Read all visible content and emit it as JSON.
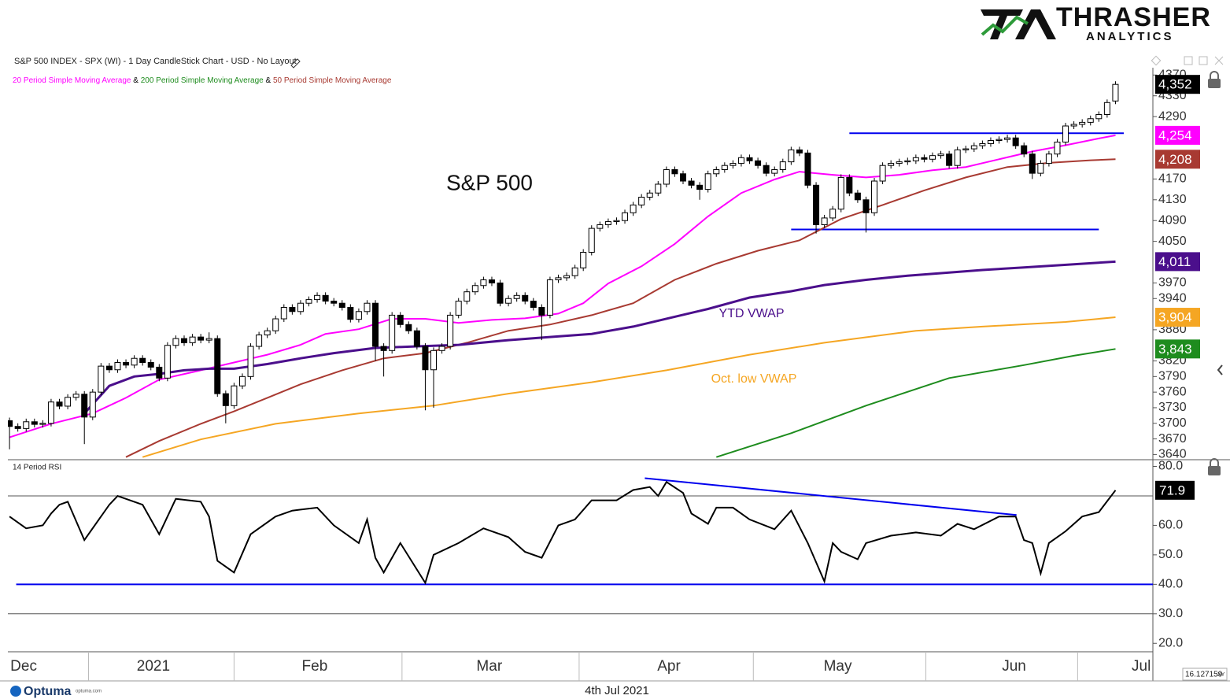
{
  "chart_data": [
    {
      "type": "candlestick",
      "title": "S&P 500 INDEX - SPX (WI) - 1 Day CandleStick Chart - USD - No Layout",
      "annotation": "S&P 500",
      "legend_separator": "&",
      "open": [
        3705,
        3694,
        3690,
        3703,
        3698,
        3700,
        3741,
        3733,
        3750,
        3756,
        3712,
        3760,
        3810,
        3803,
        3817,
        3812,
        3825,
        3817,
        3808,
        3787,
        3850,
        3863,
        3855,
        3866,
        3860,
        3863,
        3757,
        3734,
        3772,
        3790,
        3848,
        3870,
        3878,
        3901,
        3923,
        3915,
        3931,
        3938,
        3946,
        3935,
        3931,
        3923,
        3900,
        3915,
        3931,
        3848,
        3840,
        3908,
        3890,
        3878,
        3848,
        3803,
        3840,
        3848,
        3908,
        3935,
        3953,
        3965,
        3976,
        3970,
        3931,
        3940,
        3946,
        3935,
        3923,
        3908,
        3976,
        3980,
        3984,
        3999,
        4029,
        4075,
        4082,
        4088,
        4090,
        4105,
        4120,
        4135,
        4143,
        4160,
        4188,
        4180,
        4166,
        4158,
        4150,
        4180,
        4188,
        4196,
        4200,
        4211,
        4205,
        4196,
        4181,
        4188,
        4203,
        4226,
        4220,
        4158,
        4082,
        4095,
        4112,
        4173,
        4143,
        4130,
        4105,
        4166,
        4196,
        4200,
        4203,
        4205,
        4211,
        4208,
        4215,
        4218,
        4196,
        4226,
        4228,
        4234,
        4238,
        4244,
        4246,
        4249,
        4234,
        4218,
        4181,
        4200,
        4218,
        4241,
        4272,
        4275,
        4279,
        4286,
        4294,
        4320
      ],
      "high": [
        3711,
        3700,
        3709,
        3709,
        3706,
        3747,
        3747,
        3756,
        3762,
        3762,
        3766,
        3816,
        3816,
        3823,
        3823,
        3831,
        3831,
        3823,
        3814,
        3856,
        3869,
        3869,
        3872,
        3872,
        3875,
        3869,
        3763,
        3778,
        3796,
        3854,
        3876,
        3884,
        3907,
        3929,
        3929,
        3937,
        3944,
        3952,
        3952,
        3941,
        3937,
        3929,
        3921,
        3937,
        3937,
        3854,
        3914,
        3914,
        3896,
        3884,
        3854,
        3846,
        3854,
        3914,
        3941,
        3959,
        3971,
        3982,
        3982,
        3976,
        3946,
        3952,
        3952,
        3941,
        3929,
        3982,
        3986,
        3990,
        4005,
        4035,
        4081,
        4088,
        4094,
        4096,
        4111,
        4126,
        4141,
        4149,
        4166,
        4194,
        4194,
        4186,
        4172,
        4164,
        4186,
        4194,
        4202,
        4206,
        4217,
        4217,
        4211,
        4202,
        4194,
        4209,
        4232,
        4232,
        4226,
        4164,
        4101,
        4118,
        4179,
        4179,
        4149,
        4136,
        4172,
        4202,
        4206,
        4209,
        4211,
        4217,
        4217,
        4221,
        4224,
        4224,
        4232,
        4234,
        4240,
        4244,
        4250,
        4252,
        4255,
        4255,
        4240,
        4224,
        4206,
        4224,
        4247,
        4278,
        4281,
        4285,
        4292,
        4300,
        4323,
        4358
      ],
      "low": [
        3650,
        3684,
        3684,
        3692,
        3692,
        3694,
        3727,
        3727,
        3744,
        3660,
        3706,
        3754,
        3797,
        3797,
        3806,
        3806,
        3811,
        3802,
        3781,
        3781,
        3844,
        3849,
        3849,
        3854,
        3854,
        3751,
        3700,
        3728,
        3766,
        3784,
        3842,
        3864,
        3872,
        3895,
        3909,
        3909,
        3925,
        3932,
        3929,
        3925,
        3917,
        3894,
        3894,
        3909,
        3820,
        3790,
        3834,
        3884,
        3872,
        3842,
        3725,
        3730,
        3834,
        3842,
        3902,
        3929,
        3947,
        3959,
        3964,
        3925,
        3925,
        3934,
        3929,
        3917,
        3860,
        3902,
        3970,
        3974,
        3978,
        3993,
        4023,
        4069,
        4076,
        4082,
        4084,
        4099,
        4114,
        4129,
        4137,
        4154,
        4174,
        4160,
        4152,
        4130,
        4144,
        4174,
        4182,
        4190,
        4194,
        4199,
        4190,
        4175,
        4175,
        4182,
        4197,
        4214,
        4152,
        4065,
        4076,
        4089,
        4106,
        4137,
        4124,
        4067,
        4099,
        4160,
        4190,
        4194,
        4197,
        4199,
        4202,
        4202,
        4209,
        4190,
        4190,
        4220,
        4222,
        4228,
        4232,
        4238,
        4240,
        4228,
        4212,
        4170,
        4175,
        4194,
        4212,
        4235,
        4266,
        4269,
        4273,
        4280,
        4288,
        4314
      ],
      "close": [
        3694,
        3690,
        3703,
        3698,
        3700,
        3741,
        3733,
        3750,
        3756,
        3712,
        3760,
        3810,
        3803,
        3817,
        3812,
        3825,
        3817,
        3808,
        3787,
        3850,
        3863,
        3855,
        3866,
        3860,
        3863,
        3757,
        3734,
        3772,
        3790,
        3848,
        3870,
        3878,
        3901,
        3923,
        3915,
        3931,
        3938,
        3946,
        3935,
        3931,
        3923,
        3900,
        3915,
        3931,
        3848,
        3840,
        3908,
        3890,
        3878,
        3848,
        3803,
        3840,
        3848,
        3908,
        3935,
        3953,
        3965,
        3976,
        3970,
        3931,
        3940,
        3946,
        3935,
        3923,
        3908,
        3976,
        3980,
        3984,
        3999,
        4029,
        4075,
        4082,
        4088,
        4090,
        4105,
        4120,
        4135,
        4143,
        4160,
        4188,
        4180,
        4166,
        4158,
        4150,
        4180,
        4188,
        4196,
        4200,
        4211,
        4205,
        4196,
        4181,
        4188,
        4203,
        4226,
        4220,
        4158,
        4082,
        4095,
        4112,
        4173,
        4143,
        4130,
        4105,
        4166,
        4196,
        4200,
        4203,
        4205,
        4211,
        4208,
        4215,
        4218,
        4196,
        4226,
        4228,
        4234,
        4238,
        4244,
        4246,
        4249,
        4234,
        4218,
        4181,
        4200,
        4218,
        4241,
        4272,
        4275,
        4279,
        4286,
        4294,
        4317,
        4352
      ],
      "series": [
        {
          "name": "20 Period Simple Moving Average",
          "color": "#ff00ff",
          "legend": true,
          "x": [
            0,
            5,
            10,
            14,
            18,
            23,
            27,
            31,
            35,
            38,
            42,
            46,
            50,
            54,
            58,
            62,
            66,
            69,
            72,
            76,
            80,
            84,
            88,
            92,
            95,
            99,
            103,
            107,
            111,
            115,
            119,
            123,
            127,
            131,
            133
          ],
          "values": [
            3673,
            3699,
            3719,
            3749,
            3784,
            3802,
            3817,
            3832,
            3851,
            3872,
            3881,
            3901,
            3901,
            3893,
            3899,
            3902,
            3911,
            3931,
            3969,
            4002,
            4045,
            4098,
            4143,
            4169,
            4184,
            4178,
            4173,
            4178,
            4187,
            4193,
            4208,
            4223,
            4235,
            4248,
            4254
          ]
        },
        {
          "name": "200 Period Simple Moving Average",
          "color": "#1e8c1e",
          "legend": true,
          "x": [
            85,
            94,
            103,
            113,
            122,
            128,
            133
          ],
          "values": [
            3635,
            3681,
            3734,
            3787,
            3812,
            3830,
            3843
          ]
        },
        {
          "name": "50 Period Simple Moving Average",
          "color": "#a83a32",
          "legend": true,
          "x": [
            14,
            18,
            23,
            27,
            31,
            35,
            40,
            45,
            50,
            55,
            60,
            65,
            70,
            75,
            80,
            85,
            90,
            95,
            100,
            105,
            110,
            115,
            120,
            125,
            130,
            133
          ],
          "values": [
            3635,
            3666,
            3699,
            3723,
            3749,
            3775,
            3802,
            3825,
            3835,
            3855,
            3878,
            3890,
            3908,
            3931,
            3976,
            4007,
            4032,
            4052,
            4093,
            4120,
            4148,
            4173,
            4193,
            4201,
            4206,
            4208
          ]
        },
        {
          "name": "YTD VWAP",
          "color": "#4b0f8c",
          "x": [
            9,
            12,
            15,
            18,
            21,
            24,
            27,
            31,
            35,
            39,
            44,
            49,
            54,
            60,
            65,
            70,
            75,
            80,
            84,
            89,
            94,
            98,
            103,
            108,
            113,
            117,
            122,
            128,
            133
          ],
          "values": [
            3719,
            3772,
            3790,
            3795,
            3802,
            3805,
            3805,
            3814,
            3825,
            3835,
            3845,
            3848,
            3851,
            3860,
            3866,
            3872,
            3886,
            3905,
            3920,
            3942,
            3954,
            3966,
            3976,
            3984,
            3990,
            3995,
            4000,
            4006,
            4011
          ]
        },
        {
          "name": "Oct. low VWAP",
          "color": "#f5a623",
          "x": [
            16,
            23,
            32,
            42,
            51,
            60,
            70,
            79,
            89,
            98,
            109,
            117,
            127,
            133
          ],
          "values": [
            3635,
            3669,
            3699,
            3719,
            3734,
            3757,
            3779,
            3802,
            3832,
            3855,
            3878,
            3886,
            3895,
            3904
          ]
        }
      ],
      "hlines": [
        {
          "y": 4258,
          "x": [
            101,
            134
          ],
          "color": "#0000ee"
        },
        {
          "y": 4073,
          "x": [
            94,
            131
          ],
          "color": "#0000ee"
        }
      ],
      "tags": [
        {
          "value": 4352,
          "label": "4,352",
          "color": "#000000"
        },
        {
          "value": 4254,
          "label": "4,254",
          "color": "#ff00ff"
        },
        {
          "value": 4208,
          "label": "4,208",
          "color": "#a83a32"
        },
        {
          "value": 4011,
          "label": "4,011",
          "color": "#4b0f8c"
        },
        {
          "value": 3904,
          "label": "3,904",
          "color": "#f5a623"
        },
        {
          "value": 3843,
          "label": "3,843",
          "color": "#1e8c1e"
        }
      ],
      "xlim": [
        -0.2,
        137.5
      ],
      "xticks": [
        {
          "value": 1.7,
          "label": "Dec"
        },
        {
          "value": 17.3,
          "label": "2021"
        },
        {
          "value": 36.7,
          "label": "Feb"
        },
        {
          "value": 57.7,
          "label": "Mar"
        },
        {
          "value": 79.3,
          "label": "Apr"
        },
        {
          "value": 99.6,
          "label": "May"
        },
        {
          "value": 120.8,
          "label": "Jun"
        },
        {
          "value": 136.1,
          "label": "Jul"
        }
      ],
      "ylim": [
        3630,
        4375
      ],
      "yticks": [
        4370,
        4330,
        4290,
        4170,
        4130,
        4090,
        4050,
        3970,
        3940,
        3880,
        3820,
        3790,
        3760,
        3730,
        3700,
        3670,
        3640
      ]
    },
    {
      "type": "line",
      "title": "14 Period RSI",
      "color": "#000000",
      "x": [
        0,
        2,
        4,
        5,
        6,
        7,
        9,
        12,
        13,
        16,
        18,
        20,
        23,
        24,
        25,
        27,
        29,
        32,
        34,
        37,
        39,
        42,
        43,
        44,
        45,
        47,
        50,
        51,
        54,
        57,
        60,
        62,
        64,
        66,
        68,
        70,
        73,
        75,
        77,
        78,
        79,
        81,
        82,
        84,
        85,
        87,
        89,
        92,
        94,
        96,
        98,
        99,
        100,
        102,
        103,
        106,
        109,
        112,
        114,
        116,
        119,
        121,
        122,
        123,
        124,
        125,
        127,
        129,
        131,
        133
      ],
      "values": [
        63,
        59,
        60,
        64,
        67,
        68,
        55,
        67,
        70,
        67,
        57,
        69,
        68,
        63,
        48,
        44,
        57,
        63,
        65,
        66,
        60,
        54,
        62,
        49,
        44,
        54,
        40.5,
        50,
        54,
        59,
        56,
        51,
        49,
        60,
        62,
        68.5,
        68.5,
        72,
        73,
        70,
        74.7,
        71,
        64,
        60.5,
        66,
        66,
        62,
        58.7,
        65,
        54,
        41,
        54,
        51,
        48.5,
        54,
        56.5,
        57.6,
        56.5,
        60.5,
        58.7,
        63,
        63,
        55,
        54,
        43.7,
        54,
        58,
        63,
        64.5,
        71.9
      ],
      "levels": [
        70,
        30
      ],
      "hlines": [
        {
          "y": 40,
          "x": [
            0.8,
            137.5
          ],
          "color": "#0000ee"
        }
      ],
      "trendline": {
        "x": [
          76.4,
          121.1
        ],
        "values": [
          76,
          63.5
        ],
        "color": "#0000ee"
      },
      "tag": 71.9,
      "xlim": [
        -0.2,
        137.5
      ],
      "ylim": [
        19,
        82
      ],
      "yticks": [
        {
          "value": 80,
          "label": "80.0"
        },
        {
          "value": 60,
          "label": "60.0"
        },
        {
          "value": 50,
          "label": "50.0"
        },
        {
          "value": 40,
          "label": "40.0"
        },
        {
          "value": 30,
          "label": "30.0"
        },
        {
          "value": 20,
          "label": "20.0"
        }
      ]
    }
  ],
  "logo": {
    "name": "THRASHER",
    "sub": "ANALYTICS"
  },
  "footer": {
    "brand": "Optuma",
    "site": "optuma.com",
    "date": "4th Jul 2021",
    "scale": "16.127159",
    "mode": "XY"
  }
}
